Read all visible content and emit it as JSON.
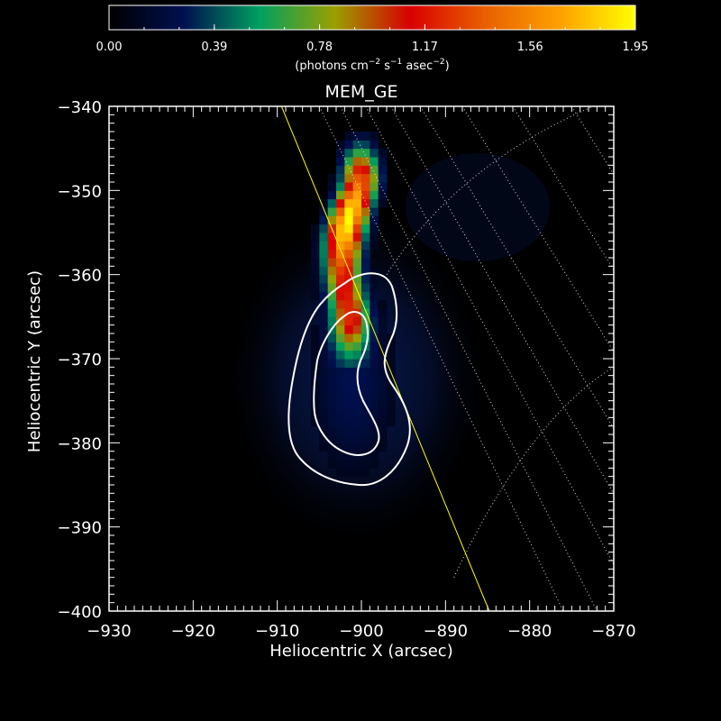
{
  "chart_data": {
    "type": "heatmap",
    "title": "MEM_GE",
    "xlabel": "Heliocentric X (arcsec)",
    "ylabel": "Heliocentric Y (arcsec)",
    "xlim": [
      -930,
      -870
    ],
    "ylim": [
      -400,
      -340
    ],
    "xticks": [
      -930,
      -920,
      -910,
      -900,
      -890,
      -880,
      -870
    ],
    "yticks": [
      -400,
      -390,
      -380,
      -370,
      -360,
      -350,
      -340
    ],
    "xtick_labels": [
      "−930",
      "−920",
      "−910",
      "−900",
      "−890",
      "−880",
      "−870"
    ],
    "ytick_labels": [
      "−400",
      "−390",
      "−380",
      "−370",
      "−360",
      "−350",
      "−340"
    ],
    "colorbar": {
      "ticks": [
        0.0,
        0.39,
        0.78,
        1.17,
        1.56,
        1.95
      ],
      "tick_labels": [
        "0.00",
        "0.39",
        "0.78",
        "1.17",
        "1.56",
        "1.95"
      ],
      "range": [
        0.0,
        1.95
      ],
      "unit_text": "(photons cm",
      "unit_exp1": "−2",
      "unit_mid1": " s",
      "unit_exp2": "−1",
      "unit_mid2": " asec",
      "unit_exp3": "−2",
      "unit_end": ")",
      "colors": [
        "#000000",
        "#001050",
        "#00a060",
        "#9aa000",
        "#d80000",
        "#e86000",
        "#ffa000",
        "#ffff00"
      ]
    },
    "source_center": [
      -901.5,
      -373
    ],
    "peak_value": 1.95,
    "limb_line": {
      "from": [
        -909.5,
        -340
      ],
      "to": [
        -884.8,
        -400
      ],
      "color": "#ffff00"
    },
    "contour_color": "#ffffff",
    "grid_color": "#ffffff"
  }
}
